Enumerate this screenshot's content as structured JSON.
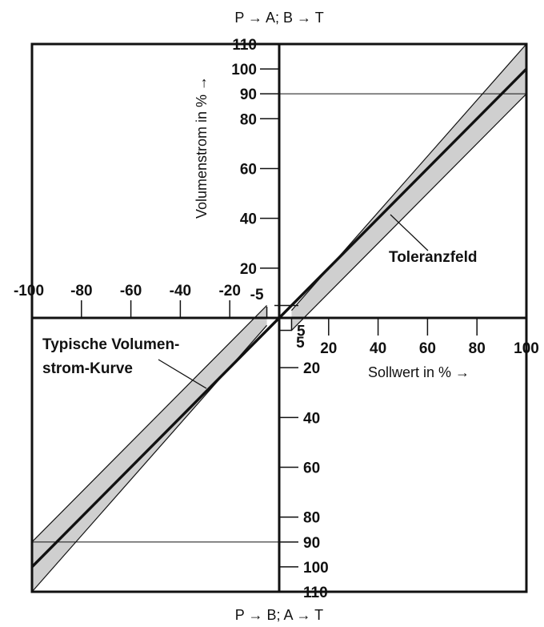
{
  "chart_data": {
    "type": "line",
    "top_label": "P → A; B → T",
    "bottom_label": "P → B; A → T",
    "xlabel": "Sollwert in % →",
    "ylabel": "Volumenstrom in % →",
    "xlim": [
      -100,
      100
    ],
    "ylim": [
      -110,
      110
    ],
    "x_ticks_positive": [
      "5",
      "20",
      "40",
      "60",
      "80",
      "100"
    ],
    "x_ticks_negative": [
      "-5",
      "-20",
      "-40",
      "-60",
      "-80",
      "-100"
    ],
    "y_ticks_positive": [
      "20",
      "40",
      "60",
      "80",
      "90",
      "100",
      "110"
    ],
    "y_ticks_negative": [
      "5",
      "20",
      "40",
      "60",
      "80",
      "90",
      "100",
      "110"
    ],
    "reference_level": 90,
    "tolerance_label": "Toleranzfeld",
    "curve_label_line1": "Typische Volumen-",
    "curve_label_line2": "strom-Kurve",
    "series": [
      {
        "x": [
          -100,
          0,
          100
        ],
        "y": [
          -100,
          0,
          100
        ]
      }
    ],
    "tolerance_band": {
      "x": [
        5,
        100
      ],
      "upper": [
        3,
        110
      ],
      "lower": [
        -5,
        90
      ]
    },
    "grid": false
  }
}
